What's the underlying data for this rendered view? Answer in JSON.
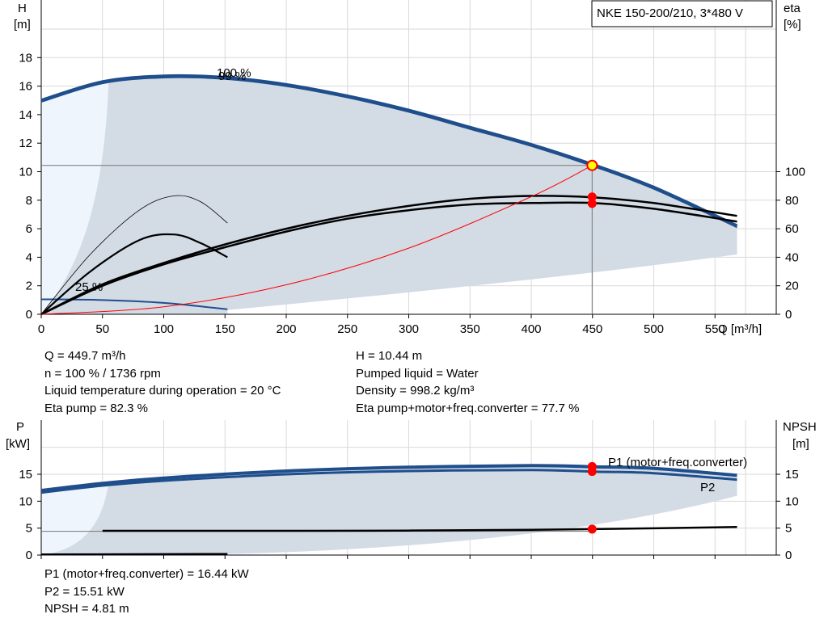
{
  "chart_data": [
    {
      "type": "line",
      "title": "NKE 150-200/210, 3*480 V",
      "x_label": "Q [m³/h]",
      "y_label_left": [
        "H",
        "[m]"
      ],
      "y_label_right": [
        "eta",
        "[%]"
      ],
      "xlim": [
        0,
        600
      ],
      "ylim_left": [
        0,
        20
      ],
      "ylim_right": [
        0,
        200
      ],
      "x_ticks": [
        0,
        50,
        100,
        150,
        200,
        250,
        300,
        350,
        400,
        450,
        500,
        550
      ],
      "y_ticks_left": [
        0,
        2,
        4,
        6,
        8,
        10,
        12,
        14,
        16,
        18
      ],
      "y_ticks_right": [
        0,
        20,
        40,
        60,
        80,
        100
      ],
      "curve_labels": [
        "100 %",
        "99 %",
        "25 %"
      ],
      "operating_point": {
        "q": 449.7,
        "h": 10.44,
        "eta": 82.3,
        "eta_total": 77.7
      },
      "series": [
        {
          "name": "100 %",
          "role": "head",
          "x": [
            0,
            50,
            100,
            150,
            200,
            250,
            300,
            350,
            400,
            450,
            500,
            568
          ],
          "y": [
            15.0,
            16.3,
            16.7,
            16.6,
            16.1,
            15.3,
            14.3,
            13.1,
            11.9,
            10.5,
            8.9,
            6.2
          ]
        },
        {
          "name": "99 %",
          "role": "head",
          "x": [
            0,
            50,
            100,
            150,
            200,
            250,
            300,
            350,
            400,
            450,
            500,
            568
          ],
          "y": [
            14.9,
            16.2,
            16.6,
            16.5,
            16.0,
            15.2,
            14.2,
            13.0,
            11.8,
            10.4,
            8.8,
            6.1
          ]
        },
        {
          "name": "25 %",
          "role": "head",
          "x": [
            0,
            50,
            100,
            152
          ],
          "y": [
            1.05,
            1.0,
            0.8,
            0.35
          ]
        },
        {
          "role": "eta pump",
          "x": [
            0,
            50,
            100,
            150,
            200,
            250,
            300,
            350,
            400,
            450,
            500,
            568
          ],
          "y": [
            0,
            21,
            36,
            49,
            60,
            69,
            76,
            81,
            83,
            82,
            78,
            69
          ]
        },
        {
          "role": "eta pump+motor+freq.converter",
          "x": [
            0,
            50,
            100,
            150,
            200,
            250,
            300,
            350,
            400,
            450,
            500,
            568
          ],
          "y": [
            0,
            20,
            35,
            47,
            58,
            67,
            73,
            77,
            78,
            78,
            74,
            65
          ]
        },
        {
          "role": "eta pump 25 %",
          "x": [
            0,
            40,
            80,
            108,
            130,
            152
          ],
          "y": [
            0,
            42,
            73,
            83,
            79,
            64
          ]
        },
        {
          "role": "eta total 25 %",
          "x": [
            0,
            40,
            80,
            108,
            130,
            152
          ],
          "y": [
            0,
            30,
            52,
            56,
            50,
            40
          ]
        },
        {
          "role": "system curve",
          "x": [
            0,
            100,
            200,
            300,
            400,
            449.7
          ],
          "y": [
            0,
            0.52,
            2.07,
            4.64,
            8.25,
            10.44
          ]
        }
      ]
    },
    {
      "type": "line",
      "x_label": "",
      "y_label_left": [
        "P",
        "[kW]"
      ],
      "y_label_right": [
        "NPSH",
        "[m]"
      ],
      "xlim": [
        0,
        600
      ],
      "ylim_left": [
        0,
        20
      ],
      "ylim_right": [
        0,
        20
      ],
      "y_ticks_left": [
        0,
        5,
        10,
        15
      ],
      "y_ticks_right": [
        0,
        5,
        10,
        15
      ],
      "operating_point": {
        "q": 449.7,
        "p1": 16.44,
        "p2": 15.51,
        "npsh": 4.81
      },
      "series": [
        {
          "name": "P1 (motor+freq.converter)",
          "role": "p1",
          "x": [
            0,
            50,
            100,
            200,
            300,
            400,
            450,
            500,
            568
          ],
          "y": [
            12.0,
            13.3,
            14.3,
            15.6,
            16.3,
            16.6,
            16.4,
            16.1,
            14.8
          ]
        },
        {
          "name": "P2",
          "role": "p2",
          "x": [
            0,
            50,
            100,
            200,
            300,
            400,
            450,
            500,
            568
          ],
          "y": [
            11.6,
            12.9,
            13.8,
            15.0,
            15.6,
            15.8,
            15.5,
            15.2,
            14.0
          ]
        },
        {
          "role": "npsh",
          "x": [
            50,
            200,
            300,
            400,
            450,
            568
          ],
          "y": [
            4.5,
            4.5,
            4.55,
            4.7,
            4.81,
            5.2
          ]
        },
        {
          "role": "p 25 %",
          "x": [
            0,
            152
          ],
          "y": [
            0.1,
            0.2
          ]
        }
      ]
    }
  ],
  "info": {
    "left1": [
      "Q = 449.7 m³/h",
      "n = 100 % / 1736 rpm",
      "Liquid temperature during operation = 20 °C",
      "Eta pump = 82.3 %"
    ],
    "right1": [
      "H = 10.44 m",
      "Pumped liquid = Water",
      "Density = 998.2 kg/m³",
      "Eta pump+motor+freq.converter = 77.7 %"
    ],
    "left2": [
      "P1 (motor+freq.converter) = 16.44 kW",
      "P2 = 15.51 kW",
      "NPSH = 4.81 m"
    ]
  },
  "colors": {
    "curve": "#1f4e8c",
    "area": "#d3dbe5",
    "area_light": "#eef5fc",
    "eta": "#000000",
    "system": "#ff0000",
    "marker": "#ff0000",
    "grid": "#d9d9d9"
  }
}
